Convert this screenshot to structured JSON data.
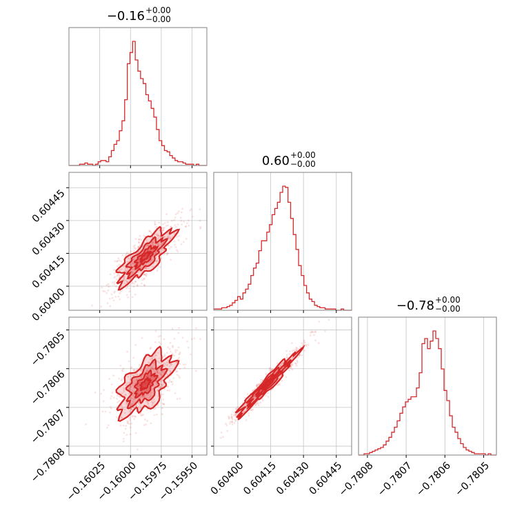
{
  "chart_data": {
    "type": "corner",
    "color": "#d62728",
    "variables": [
      {
        "title": "−0.16",
        "title_sup": "+0.00",
        "title_sub": "−0.00",
        "median": -0.15988,
        "range": [
          -0.1605,
          -0.15938
        ],
        "ticks": [
          -0.16025,
          -0.16,
          -0.15975,
          -0.1595
        ],
        "tick_labels": [
          "−0.16025",
          "−0.16000",
          "−0.15975",
          "−0.15950"
        ],
        "hist": {
          "start": -0.1605,
          "end": -0.15938,
          "counts": [
            0,
            0,
            0,
            0,
            1,
            1,
            2,
            1,
            1,
            0,
            1,
            3,
            4,
            4,
            3,
            7,
            12,
            17,
            20,
            28,
            36,
            53,
            82,
            91,
            100,
            85,
            76,
            70,
            66,
            57,
            52,
            46,
            39,
            29,
            20,
            16,
            12,
            11,
            8,
            6,
            4,
            3,
            3,
            2,
            1,
            1,
            1,
            0,
            1,
            0,
            0,
            0
          ]
        }
      },
      {
        "title": "0.60",
        "title_sup": "+0.00",
        "title_sub": "−0.00",
        "median": 0.604135,
        "range": [
          0.60389,
          0.60452
        ],
        "ticks": [
          0.604,
          0.60415,
          0.6043,
          0.60445
        ],
        "tick_labels": [
          "0.60400",
          "0.60415",
          "0.60430",
          "0.60445"
        ],
        "hist": {
          "start": 0.60389,
          "end": 0.60452,
          "counts": [
            1,
            1,
            1,
            2,
            2,
            3,
            4,
            6,
            8,
            11,
            9,
            14,
            17,
            21,
            28,
            34,
            38,
            48,
            56,
            56,
            63,
            69,
            77,
            82,
            87,
            95,
            100,
            99,
            87,
            74,
            61,
            49,
            36,
            28,
            20,
            14,
            9,
            7,
            4,
            3,
            2,
            2,
            1,
            1,
            1,
            1,
            0,
            0,
            1,
            0,
            0,
            0
          ]
        }
      },
      {
        "title": "−0.78",
        "title_sup": "+0.00",
        "title_sub": "−0.00",
        "median": -0.78064,
        "range": [
          -0.780823,
          -0.780467
        ],
        "ticks": [
          -0.7808,
          -0.7807,
          -0.7806,
          -0.7805
        ],
        "tick_labels": [
          "−0.7808",
          "−0.7807",
          "−0.7806",
          "−0.7805"
        ],
        "hist": {
          "start": -0.780823,
          "end": -0.780467,
          "counts": [
            0,
            0,
            1,
            1,
            2,
            3,
            4,
            5,
            6,
            8,
            11,
            14,
            18,
            22,
            27,
            33,
            38,
            42,
            44,
            46,
            46,
            53,
            65,
            88,
            92,
            84,
            90,
            98,
            92,
            84,
            68,
            51,
            43,
            31,
            22,
            18,
            13,
            9,
            6,
            4,
            3,
            2,
            1,
            1,
            1,
            1,
            0,
            1,
            0,
            0
          ]
        }
      }
    ],
    "pairs": [
      {
        "x": 0,
        "y": 1,
        "correlation": 0.8
      },
      {
        "x": 0,
        "y": 2,
        "correlation": 0.6
      },
      {
        "x": 1,
        "y": 2,
        "correlation": 0.97
      }
    ],
    "grid": true
  }
}
